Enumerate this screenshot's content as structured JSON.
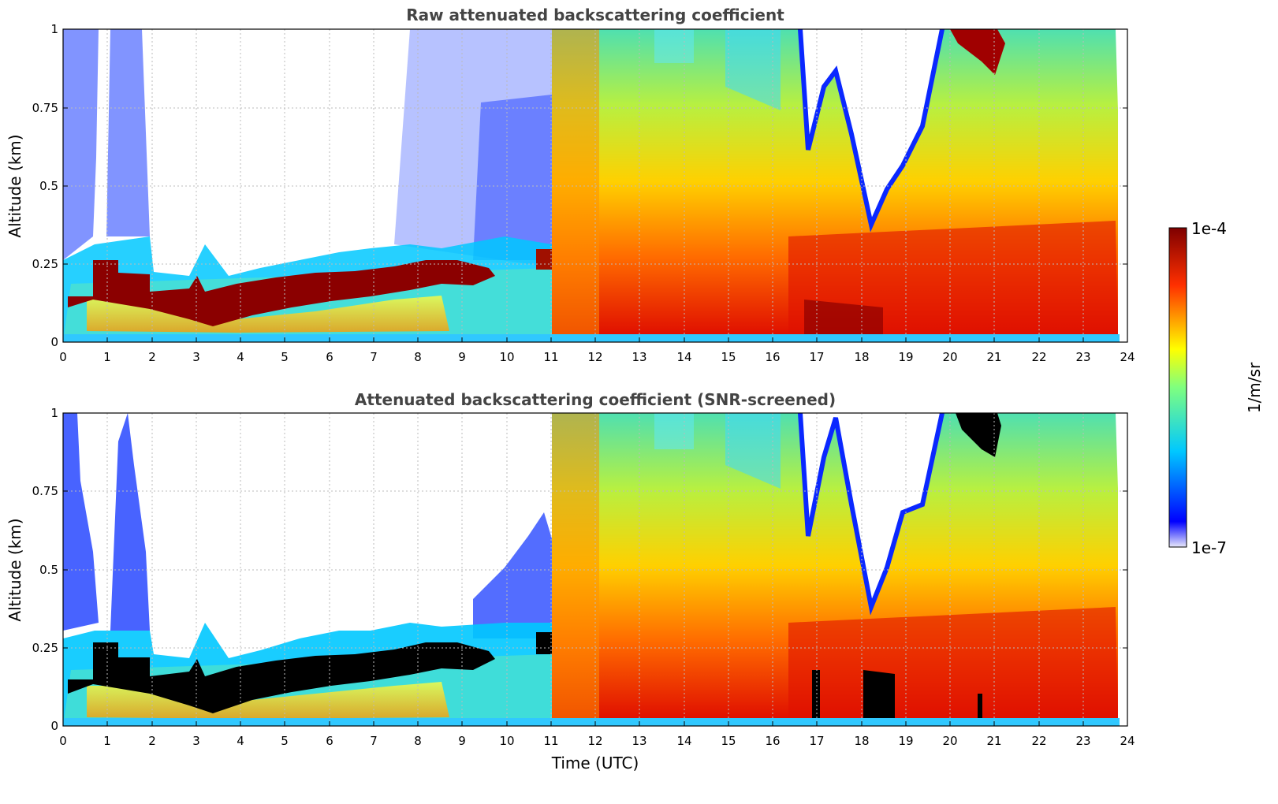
{
  "chart_data": [
    {
      "type": "heatmap",
      "title": "Raw attenuated backscattering coefficient",
      "xlabel": "",
      "ylabel": "Altitude (km)",
      "xlim": [
        0,
        24
      ],
      "ylim": [
        0,
        1
      ],
      "x_ticks": [
        "0",
        "1",
        "2",
        "3",
        "4",
        "5",
        "6",
        "7",
        "8",
        "9",
        "10",
        "11",
        "12",
        "13",
        "14",
        "15",
        "16",
        "17",
        "18",
        "19",
        "20",
        "21",
        "22",
        "23",
        "24"
      ],
      "y_ticks": [
        "0",
        "0.25",
        "0.5",
        "0.75",
        "1"
      ],
      "grid": true,
      "colorscale": "jet",
      "series": [
        {
          "name": "",
          "cloud_layer": {
            "x": [
              0.1,
              0.8,
              1.5,
              2.0,
              3.0,
              4.0,
              5.0,
              6.0,
              7.0,
              8.0,
              9.0,
              9.8,
              10.8,
              11.1
            ],
            "y_base": [
              0.11,
              0.22,
              0.22,
              0.1,
              0.06,
              0.07,
              0.1,
              0.13,
              0.15,
              0.17,
              0.2,
              0.18,
              0.24,
              0.23
            ],
            "y_top": [
              0.15,
              0.27,
              0.27,
              0.17,
              0.14,
              0.17,
              0.19,
              0.21,
              0.22,
              0.24,
              0.26,
              0.24,
              0.29,
              0.28
            ]
          }
        },
        {
          "name": "",
          "signal_top": {
            "x": [
              11.2,
              16.0,
              16.8,
              17.3,
              18.0,
              18.4,
              19.0,
              20.0,
              21.0,
              22.0,
              23.0,
              23.8
            ],
            "y": [
              1.0,
              1.0,
              0.62,
              0.95,
              0.55,
              0.33,
              0.65,
              1.0,
              0.85,
              1.0,
              0.9,
              0.72
            ]
          }
        }
      ]
    },
    {
      "type": "heatmap",
      "title": "Attenuated backscattering coefficient (SNR-screened)",
      "xlabel": "Time (UTC)",
      "ylabel": "Altitude (km)",
      "xlim": [
        0,
        24
      ],
      "ylim": [
        0,
        1
      ],
      "x_ticks": [
        "0",
        "1",
        "2",
        "3",
        "4",
        "5",
        "6",
        "7",
        "8",
        "9",
        "10",
        "11",
        "12",
        "13",
        "14",
        "15",
        "16",
        "17",
        "18",
        "19",
        "20",
        "21",
        "22",
        "23",
        "24"
      ],
      "y_ticks": [
        "0",
        "0.25",
        "0.5",
        "0.75",
        "1"
      ],
      "grid": true,
      "colorscale": "jet",
      "series": [
        {
          "name": "",
          "saturated_layer": {
            "x": [
              0.1,
              0.8,
              1.5,
              2.0,
              3.0,
              4.0,
              5.0,
              6.0,
              7.0,
              8.0,
              9.0,
              9.8,
              10.8,
              11.1
            ],
            "y_base": [
              0.11,
              0.22,
              0.22,
              0.1,
              0.06,
              0.07,
              0.1,
              0.13,
              0.15,
              0.17,
              0.2,
              0.18,
              0.24,
              0.23
            ],
            "y_top": [
              0.15,
              0.27,
              0.27,
              0.17,
              0.14,
              0.17,
              0.19,
              0.21,
              0.22,
              0.24,
              0.26,
              0.24,
              0.29,
              0.28
            ]
          }
        },
        {
          "name": "",
          "signal_top": {
            "x": [
              11.2,
              16.0,
              16.8,
              17.3,
              18.0,
              18.4,
              19.0,
              20.0,
              21.0,
              22.0,
              23.0,
              23.8
            ],
            "y": [
              1.0,
              1.0,
              0.62,
              0.95,
              0.55,
              0.33,
              0.65,
              1.0,
              0.85,
              1.0,
              0.9,
              0.72
            ]
          }
        }
      ]
    }
  ],
  "colorbar": {
    "max_label": "1e-4",
    "min_label": "1e-7",
    "label": "1/m/sr",
    "colors": [
      "#00007f",
      "#0000ff",
      "#00ffff",
      "#ffff00",
      "#ff0000",
      "#7f0000"
    ]
  }
}
